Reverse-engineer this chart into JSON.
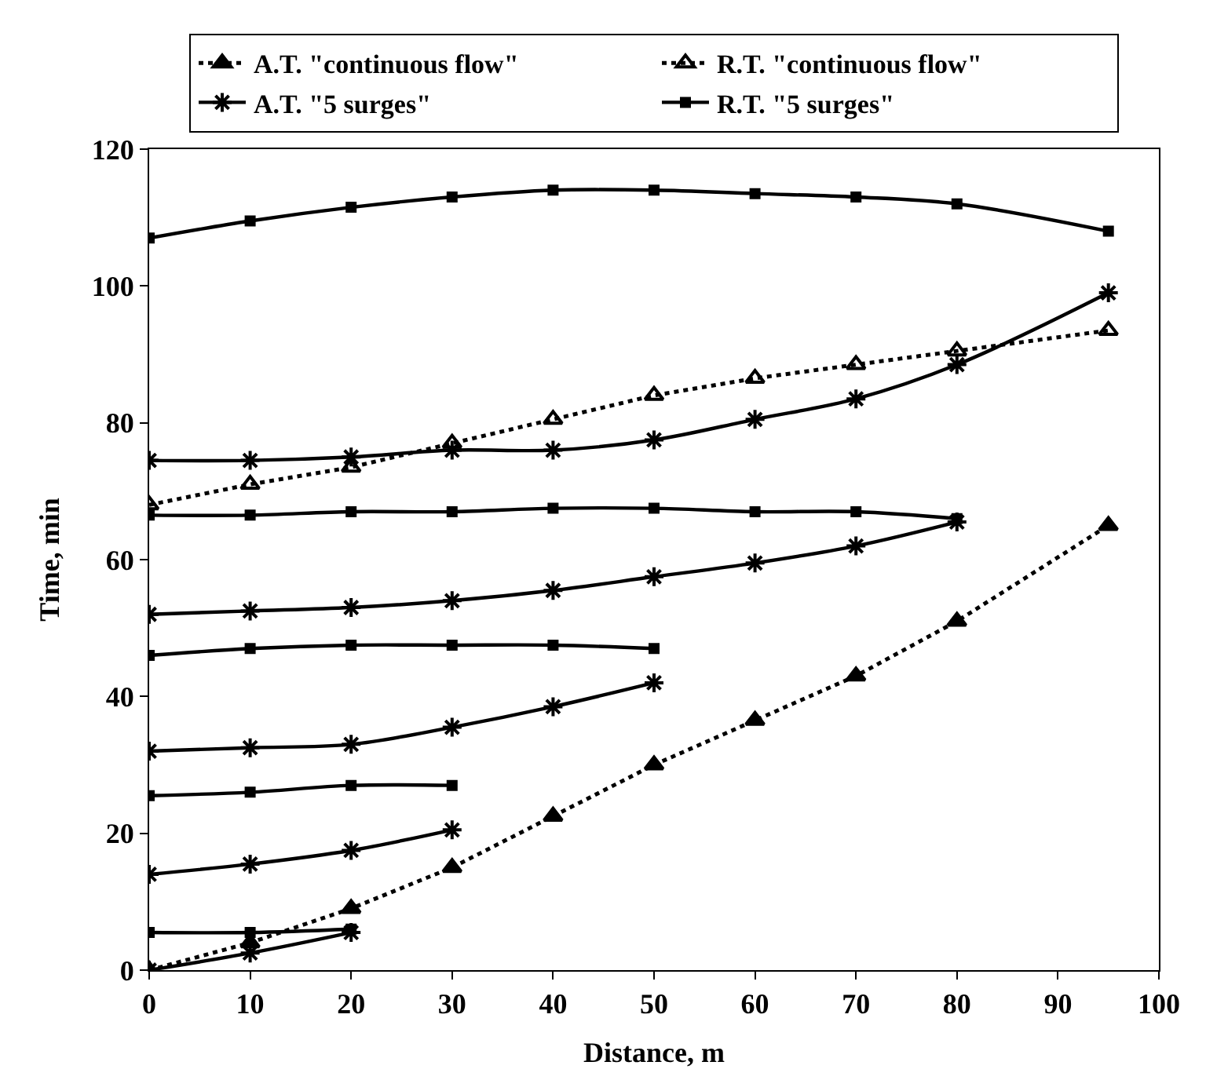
{
  "chart_data": {
    "type": "line",
    "xlabel": "Distance, m",
    "ylabel": "Time, min",
    "xlim": [
      0,
      100
    ],
    "xticks": [
      0,
      10,
      20,
      30,
      40,
      50,
      60,
      70,
      80,
      90,
      100
    ],
    "ylim": [
      0,
      120
    ],
    "yticks": [
      0,
      20,
      40,
      60,
      80,
      100,
      120
    ],
    "grid": false,
    "legend": "top",
    "series": [
      {
        "name": "A.T. \"continuous flow\"",
        "color": "#000000",
        "marker": "triangle",
        "line_style": "dotted",
        "x": [
          0,
          10,
          20,
          30,
          40,
          50,
          60,
          70,
          80,
          95
        ],
        "values": [
          0,
          4,
          9,
          15,
          22.5,
          30,
          36.5,
          43,
          51,
          65
        ]
      },
      {
        "name": "R.T. \"continuous flow\"",
        "color": "#000000",
        "marker": "triangle-open",
        "line_style": "dotted",
        "x": [
          0,
          10,
          20,
          30,
          40,
          50,
          60,
          70,
          80,
          95
        ],
        "values": [
          68,
          71,
          73.5,
          77,
          80.5,
          84,
          86.5,
          88.5,
          90.5,
          93.5
        ]
      },
      {
        "name": "A.T. \"5 surges\"",
        "color": "#000000",
        "marker": "cross",
        "line_style": "solid",
        "x": [
          0,
          10,
          20
        ],
        "values": [
          0,
          2.5,
          5.5
        ]
      },
      {
        "name": "R.T. \"5 surges\"",
        "color": "#000000",
        "marker": "square",
        "line_style": "solid",
        "x": [
          0,
          10,
          20
        ],
        "values": [
          5.5,
          5.5,
          6
        ]
      },
      {
        "color": "#000000",
        "marker": "cross",
        "line_style": "solid",
        "x": [
          0,
          10,
          20,
          30
        ],
        "values": [
          14,
          15.5,
          17.5,
          20.5
        ]
      },
      {
        "color": "#000000",
        "marker": "square",
        "line_style": "solid",
        "x": [
          0,
          10,
          20,
          30
        ],
        "values": [
          25.5,
          26,
          27,
          27
        ]
      },
      {
        "color": "#000000",
        "marker": "cross",
        "line_style": "solid",
        "x": [
          0,
          10,
          20,
          30,
          40,
          50
        ],
        "values": [
          32,
          32.5,
          33,
          35.5,
          38.5,
          42
        ]
      },
      {
        "color": "#000000",
        "marker": "square",
        "line_style": "solid",
        "x": [
          0,
          10,
          20,
          30,
          40,
          50
        ],
        "values": [
          46,
          47,
          47.5,
          47.5,
          47.5,
          47
        ]
      },
      {
        "color": "#000000",
        "marker": "cross",
        "line_style": "solid",
        "x": [
          0,
          10,
          20,
          30,
          40,
          50,
          60,
          70,
          80
        ],
        "values": [
          52,
          52.5,
          53,
          54,
          55.5,
          57.5,
          59.5,
          62,
          65.5
        ]
      },
      {
        "color": "#000000",
        "marker": "square",
        "line_style": "solid",
        "x": [
          0,
          10,
          20,
          30,
          40,
          50,
          60,
          70,
          80
        ],
        "values": [
          66.5,
          66.5,
          67,
          67,
          67.5,
          67.5,
          67,
          67,
          66
        ]
      },
      {
        "color": "#000000",
        "marker": "cross",
        "line_style": "solid",
        "x": [
          0,
          10,
          20,
          30,
          40,
          50,
          60,
          70,
          80,
          95
        ],
        "values": [
          74.5,
          74.5,
          75,
          76,
          76,
          77.5,
          80.5,
          83.5,
          88.5,
          99
        ]
      },
      {
        "color": "#000000",
        "marker": "square",
        "line_style": "solid",
        "x": [
          0,
          10,
          20,
          30,
          40,
          50,
          60,
          70,
          80,
          95
        ],
        "values": [
          107,
          109.5,
          111.5,
          113,
          114,
          114,
          113.5,
          113,
          112,
          108
        ]
      }
    ]
  }
}
